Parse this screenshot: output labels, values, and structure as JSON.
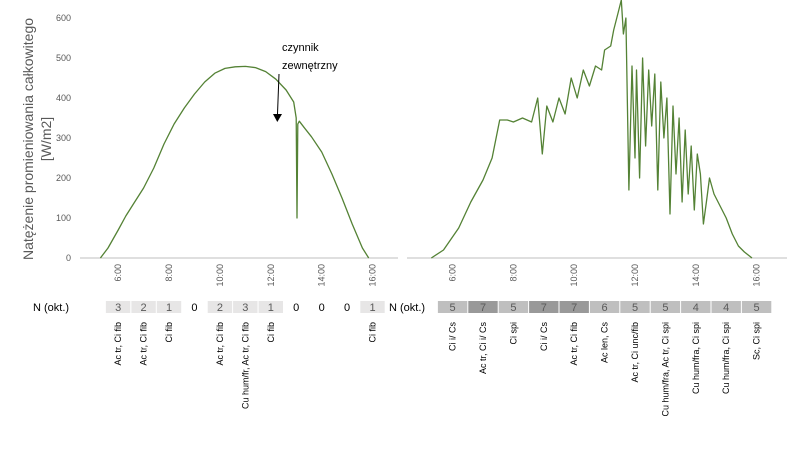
{
  "colors": {
    "line": "#548235",
    "axis": "#bfbfbf",
    "text": "#595959",
    "cell_light": "#e7e6e6",
    "cell_mid": "#bfbfbf",
    "cell_dark": "#999999"
  },
  "chart_data": [
    {
      "type": "line",
      "title": "",
      "ylabel_line1": "Natężenie promieniowania całkowitego",
      "ylabel_line2": "[W/m2]",
      "ylim": [
        0,
        650
      ],
      "yticks": [
        "0",
        "100",
        "200",
        "300",
        "400",
        "500",
        "600"
      ],
      "xlim": [
        4.5,
        17.0
      ],
      "xticks": [
        "6:00",
        "8:00",
        "10:00",
        "12:00",
        "14:00",
        "16:00"
      ],
      "xtick_values": [
        6,
        8,
        10,
        12,
        14,
        16
      ],
      "annotation": {
        "line1": "czynnik",
        "line2": "zewnętrzny",
        "x": 13.05,
        "y": 345
      },
      "series": [
        {
          "values": [
            [
              5.3,
              0
            ],
            [
              5.6,
              25
            ],
            [
              6.0,
              70
            ],
            [
              6.3,
              105
            ],
            [
              6.6,
              135
            ],
            [
              7.0,
              175
            ],
            [
              7.4,
              225
            ],
            [
              7.8,
              285
            ],
            [
              8.2,
              335
            ],
            [
              8.6,
              375
            ],
            [
              9.0,
              410
            ],
            [
              9.4,
              440
            ],
            [
              9.8,
              462
            ],
            [
              10.2,
              474
            ],
            [
              10.6,
              478
            ],
            [
              11.0,
              479
            ],
            [
              11.4,
              476
            ],
            [
              11.8,
              466
            ],
            [
              12.2,
              447
            ],
            [
              12.6,
              420
            ],
            [
              12.9,
              390
            ],
            [
              13.0,
              350
            ],
            [
              13.03,
              100
            ],
            [
              13.06,
              335
            ],
            [
              13.12,
              342
            ],
            [
              13.3,
              327
            ],
            [
              13.6,
              303
            ],
            [
              14.0,
              265
            ],
            [
              14.4,
              210
            ],
            [
              14.8,
              150
            ],
            [
              15.2,
              85
            ],
            [
              15.6,
              25
            ],
            [
              15.85,
              0
            ]
          ]
        }
      ]
    },
    {
      "type": "line",
      "title": "",
      "ylim": [
        0,
        650
      ],
      "xlim": [
        4.5,
        17.0
      ],
      "xticks": [
        "6:00",
        "8:00",
        "10:00",
        "12:00",
        "14:00",
        "16:00"
      ],
      "xtick_values": [
        6,
        8,
        10,
        12,
        14,
        16
      ],
      "series": [
        {
          "values": [
            [
              5.3,
              0
            ],
            [
              5.7,
              20
            ],
            [
              6.2,
              75
            ],
            [
              6.6,
              140
            ],
            [
              7.0,
              195
            ],
            [
              7.3,
              250
            ],
            [
              7.55,
              345
            ],
            [
              7.8,
              345
            ],
            [
              8.0,
              340
            ],
            [
              8.3,
              350
            ],
            [
              8.6,
              340
            ],
            [
              8.8,
              400
            ],
            [
              8.95,
              260
            ],
            [
              9.1,
              380
            ],
            [
              9.3,
              340
            ],
            [
              9.5,
              400
            ],
            [
              9.7,
              360
            ],
            [
              9.9,
              450
            ],
            [
              10.1,
              400
            ],
            [
              10.3,
              470
            ],
            [
              10.5,
              430
            ],
            [
              10.7,
              480
            ],
            [
              10.9,
              470
            ],
            [
              11.0,
              520
            ],
            [
              11.2,
              530
            ],
            [
              11.3,
              570
            ],
            [
              11.45,
              615
            ],
            [
              11.55,
              645
            ],
            [
              11.62,
              560
            ],
            [
              11.7,
              600
            ],
            [
              11.8,
              170
            ],
            [
              11.9,
              480
            ],
            [
              12.0,
              250
            ],
            [
              12.05,
              470
            ],
            [
              12.15,
              200
            ],
            [
              12.25,
              500
            ],
            [
              12.35,
              280
            ],
            [
              12.45,
              470
            ],
            [
              12.55,
              330
            ],
            [
              12.65,
              460
            ],
            [
              12.75,
              170
            ],
            [
              12.85,
              440
            ],
            [
              12.95,
              300
            ],
            [
              13.05,
              400
            ],
            [
              13.15,
              110
            ],
            [
              13.25,
              380
            ],
            [
              13.35,
              210
            ],
            [
              13.45,
              350
            ],
            [
              13.55,
              140
            ],
            [
              13.65,
              320
            ],
            [
              13.75,
              160
            ],
            [
              13.85,
              280
            ],
            [
              13.95,
              120
            ],
            [
              14.05,
              260
            ],
            [
              14.15,
              210
            ],
            [
              14.25,
              85
            ],
            [
              14.35,
              140
            ],
            [
              14.45,
              200
            ],
            [
              14.6,
              160
            ],
            [
              14.8,
              130
            ],
            [
              15.0,
              100
            ],
            [
              15.2,
              60
            ],
            [
              15.4,
              30
            ],
            [
              15.6,
              15
            ],
            [
              15.85,
              0
            ]
          ]
        }
      ]
    }
  ],
  "n_table": {
    "label": "N (okt.)",
    "left": {
      "items": [
        {
          "x": 6.0,
          "n": "3",
          "shade": "light",
          "clouds": [
            "Ac tr,  Ci fib"
          ]
        },
        {
          "x": 7.0,
          "n": "2",
          "shade": "light",
          "clouds": [
            "Ac tr,  Ci fib"
          ]
        },
        {
          "x": 8.0,
          "n": "1",
          "shade": "light",
          "clouds": [
            "Ci fib"
          ]
        },
        {
          "x": 9.0,
          "n": "0",
          "shade": "none",
          "clouds": []
        },
        {
          "x": 10.0,
          "n": "2",
          "shade": "light",
          "clouds": [
            "Ac tr,  Ci fib"
          ]
        },
        {
          "x": 11.0,
          "n": "3",
          "shade": "light",
          "clouds": [
            "Cu hum/fr, Ac tr,  Ci fib"
          ]
        },
        {
          "x": 12.0,
          "n": "1",
          "shade": "light",
          "clouds": [
            "Ci fib"
          ]
        },
        {
          "x": 13.0,
          "n": "0",
          "shade": "none",
          "clouds": []
        },
        {
          "x": 14.0,
          "n": "0",
          "shade": "none",
          "clouds": []
        },
        {
          "x": 15.0,
          "n": "0",
          "shade": "none",
          "clouds": []
        },
        {
          "x": 16.0,
          "n": "1",
          "shade": "light",
          "clouds": [
            "Ci fib"
          ]
        }
      ]
    },
    "right": {
      "items": [
        {
          "x": 6.0,
          "n": "5",
          "shade": "mid",
          "clouds": [
            "Ci i/ Cs"
          ]
        },
        {
          "x": 7.0,
          "n": "7",
          "shade": "dark",
          "clouds": [
            "Ac tr,   Ci i/ Cs"
          ]
        },
        {
          "x": 8.0,
          "n": "5",
          "shade": "mid",
          "clouds": [
            "Ci spi"
          ]
        },
        {
          "x": 9.0,
          "n": "7",
          "shade": "dark",
          "clouds": [
            "Ci i/ Cs"
          ]
        },
        {
          "x": 10.0,
          "n": "7",
          "shade": "dark",
          "clouds": [
            "Ac tr,   Ci fib"
          ]
        },
        {
          "x": 11.0,
          "n": "6",
          "shade": "mid",
          "clouds": [
            "Ac len,  Cs"
          ]
        },
        {
          "x": 12.0,
          "n": "5",
          "shade": "mid",
          "clouds": [
            "Ac tr,   Ci unc/fib"
          ]
        },
        {
          "x": 13.0,
          "n": "5",
          "shade": "mid",
          "clouds": [
            "Cu hum/fra,  Ac tr, Ci spi"
          ]
        },
        {
          "x": 14.0,
          "n": "4",
          "shade": "mid",
          "clouds": [
            "Cu hum/fra,  Ci spi"
          ]
        },
        {
          "x": 15.0,
          "n": "4",
          "shade": "mid",
          "clouds": [
            "Cu hum/fra,  Ci spi"
          ]
        },
        {
          "x": 16.0,
          "n": "5",
          "shade": "mid",
          "clouds": [
            "Sc, Ci spi"
          ]
        }
      ]
    }
  }
}
